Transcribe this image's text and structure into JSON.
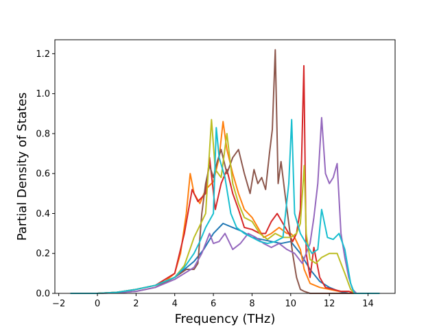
{
  "chart_data": {
    "type": "line",
    "title": "",
    "xlabel": "Frequency (THz)",
    "ylabel": "Partial Density of States",
    "xlim": [
      -2.2,
      15.4
    ],
    "ylim": [
      0,
      1.27
    ],
    "xticks": [
      -2,
      0,
      2,
      4,
      6,
      8,
      10,
      12,
      14
    ],
    "xtick_labels": [
      "−2",
      "0",
      "2",
      "4",
      "6",
      "8",
      "10",
      "12",
      "14"
    ],
    "yticks": [
      0.0,
      0.2,
      0.4,
      0.6,
      0.8,
      1.0,
      1.2
    ],
    "ytick_labels": [
      "0.0",
      "0.2",
      "0.4",
      "0.6",
      "0.8",
      "1.0",
      "1.2"
    ],
    "grid": false,
    "series": [
      {
        "color": "#1f77b4",
        "points": [
          [
            -1.4,
            0
          ],
          [
            0,
            0
          ],
          [
            1,
            0.005
          ],
          [
            2,
            0.02
          ],
          [
            3,
            0.04
          ],
          [
            4,
            0.08
          ],
          [
            4.5,
            0.12
          ],
          [
            5,
            0.16
          ],
          [
            5.5,
            0.22
          ],
          [
            6,
            0.3
          ],
          [
            6.5,
            0.35
          ],
          [
            7,
            0.33
          ],
          [
            7.5,
            0.31
          ],
          [
            8,
            0.28
          ],
          [
            8.5,
            0.27
          ],
          [
            9,
            0.26
          ],
          [
            9.5,
            0.25
          ],
          [
            10,
            0.26
          ],
          [
            10.5,
            0.2
          ],
          [
            11,
            0.12
          ],
          [
            11.5,
            0.06
          ],
          [
            12,
            0.03
          ],
          [
            12.5,
            0.01
          ],
          [
            13,
            0
          ],
          [
            14.6,
            0
          ]
        ]
      },
      {
        "color": "#ff7f0e",
        "points": [
          [
            -1.4,
            0
          ],
          [
            0,
            0
          ],
          [
            1,
            0.005
          ],
          [
            2,
            0.02
          ],
          [
            3,
            0.04
          ],
          [
            3.5,
            0.06
          ],
          [
            4,
            0.1
          ],
          [
            4.3,
            0.2
          ],
          [
            4.6,
            0.4
          ],
          [
            4.8,
            0.6
          ],
          [
            5,
            0.5
          ],
          [
            5.3,
            0.45
          ],
          [
            5.6,
            0.52
          ],
          [
            6,
            0.56
          ],
          [
            6.3,
            0.68
          ],
          [
            6.5,
            0.86
          ],
          [
            6.7,
            0.72
          ],
          [
            7,
            0.6
          ],
          [
            7.3,
            0.5
          ],
          [
            7.6,
            0.42
          ],
          [
            8,
            0.38
          ],
          [
            8.3,
            0.33
          ],
          [
            8.6,
            0.28
          ],
          [
            9,
            0.3
          ],
          [
            9.4,
            0.33
          ],
          [
            9.8,
            0.3
          ],
          [
            10,
            0.3
          ],
          [
            10.2,
            0.28
          ],
          [
            10.5,
            0.22
          ],
          [
            10.7,
            0.12
          ],
          [
            11,
            0.05
          ],
          [
            11.5,
            0.03
          ],
          [
            12,
            0.02
          ],
          [
            12.5,
            0.01
          ],
          [
            13,
            0.01
          ],
          [
            13.3,
            0
          ],
          [
            14.6,
            0
          ]
        ]
      },
      {
        "color": "#d62728",
        "points": [
          [
            -1.4,
            0
          ],
          [
            0,
            0
          ],
          [
            1,
            0.005
          ],
          [
            2,
            0.02
          ],
          [
            3,
            0.04
          ],
          [
            4,
            0.1
          ],
          [
            4.5,
            0.3
          ],
          [
            4.9,
            0.52
          ],
          [
            5.2,
            0.46
          ],
          [
            5.6,
            0.5
          ],
          [
            5.8,
            0.68
          ],
          [
            6.1,
            0.42
          ],
          [
            6.4,
            0.55
          ],
          [
            6.7,
            0.62
          ],
          [
            7,
            0.5
          ],
          [
            7.3,
            0.42
          ],
          [
            7.6,
            0.33
          ],
          [
            8,
            0.32
          ],
          [
            8.4,
            0.3
          ],
          [
            8.7,
            0.3
          ],
          [
            9,
            0.36
          ],
          [
            9.3,
            0.4
          ],
          [
            9.6,
            0.35
          ],
          [
            9.9,
            0.3
          ],
          [
            10.1,
            0.26
          ],
          [
            10.3,
            0.3
          ],
          [
            10.5,
            0.42
          ],
          [
            10.68,
            1.14
          ],
          [
            10.8,
            0.2
          ],
          [
            11,
            0.08
          ],
          [
            11.2,
            0.23
          ],
          [
            11.5,
            0.08
          ],
          [
            11.8,
            0.03
          ],
          [
            12.2,
            0.02
          ],
          [
            12.6,
            0.01
          ],
          [
            13,
            0.01
          ],
          [
            13.3,
            0
          ],
          [
            14.6,
            0
          ]
        ]
      },
      {
        "color": "#8c564b",
        "points": [
          [
            -1.4,
            0
          ],
          [
            0,
            0
          ],
          [
            1,
            0.003
          ],
          [
            2,
            0.01
          ],
          [
            3,
            0.03
          ],
          [
            4,
            0.08
          ],
          [
            4.6,
            0.12
          ],
          [
            5,
            0.12
          ],
          [
            5.2,
            0.15
          ],
          [
            5.4,
            0.4
          ],
          [
            5.6,
            0.55
          ],
          [
            5.8,
            0.64
          ],
          [
            6,
            0.58
          ],
          [
            6.2,
            0.66
          ],
          [
            6.4,
            0.72
          ],
          [
            6.7,
            0.6
          ],
          [
            7,
            0.68
          ],
          [
            7.3,
            0.72
          ],
          [
            7.6,
            0.6
          ],
          [
            7.9,
            0.5
          ],
          [
            8.1,
            0.62
          ],
          [
            8.3,
            0.55
          ],
          [
            8.5,
            0.58
          ],
          [
            8.7,
            0.52
          ],
          [
            8.9,
            0.7
          ],
          [
            9.05,
            0.82
          ],
          [
            9.2,
            1.22
          ],
          [
            9.35,
            0.55
          ],
          [
            9.5,
            0.66
          ],
          [
            9.7,
            0.5
          ],
          [
            9.9,
            0.35
          ],
          [
            10.1,
            0.2
          ],
          [
            10.3,
            0.08
          ],
          [
            10.5,
            0.02
          ],
          [
            10.7,
            0.01
          ],
          [
            11,
            0
          ],
          [
            14.6,
            0
          ]
        ]
      },
      {
        "color": "#9467bd",
        "points": [
          [
            -1.4,
            0
          ],
          [
            0,
            0
          ],
          [
            1,
            0.003
          ],
          [
            2,
            0.01
          ],
          [
            3,
            0.03
          ],
          [
            4,
            0.07
          ],
          [
            4.5,
            0.1
          ],
          [
            5,
            0.13
          ],
          [
            5.4,
            0.2
          ],
          [
            5.8,
            0.3
          ],
          [
            6,
            0.25
          ],
          [
            6.3,
            0.26
          ],
          [
            6.6,
            0.3
          ],
          [
            7,
            0.22
          ],
          [
            7.4,
            0.25
          ],
          [
            7.8,
            0.3
          ],
          [
            8.2,
            0.28
          ],
          [
            8.6,
            0.25
          ],
          [
            9,
            0.23
          ],
          [
            9.4,
            0.25
          ],
          [
            9.8,
            0.22
          ],
          [
            10.2,
            0.2
          ],
          [
            10.6,
            0.15
          ],
          [
            11,
            0.25
          ],
          [
            11.2,
            0.38
          ],
          [
            11.4,
            0.55
          ],
          [
            11.6,
            0.88
          ],
          [
            11.8,
            0.6
          ],
          [
            12,
            0.55
          ],
          [
            12.2,
            0.58
          ],
          [
            12.4,
            0.65
          ],
          [
            12.6,
            0.3
          ],
          [
            12.8,
            0.18
          ],
          [
            13,
            0.08
          ],
          [
            13.2,
            0.02
          ],
          [
            13.4,
            0
          ],
          [
            14.6,
            0
          ]
        ]
      },
      {
        "color": "#bcbd22",
        "points": [
          [
            -1.4,
            0
          ],
          [
            0,
            0
          ],
          [
            1,
            0.005
          ],
          [
            2,
            0.02
          ],
          [
            3,
            0.04
          ],
          [
            4,
            0.08
          ],
          [
            4.5,
            0.14
          ],
          [
            5,
            0.28
          ],
          [
            5.3,
            0.34
          ],
          [
            5.6,
            0.4
          ],
          [
            5.9,
            0.87
          ],
          [
            6.1,
            0.62
          ],
          [
            6.4,
            0.58
          ],
          [
            6.7,
            0.8
          ],
          [
            7,
            0.55
          ],
          [
            7.3,
            0.45
          ],
          [
            7.6,
            0.38
          ],
          [
            8,
            0.36
          ],
          [
            8.4,
            0.3
          ],
          [
            8.8,
            0.27
          ],
          [
            9.2,
            0.3
          ],
          [
            9.6,
            0.28
          ],
          [
            10,
            0.28
          ],
          [
            10.3,
            0.3
          ],
          [
            10.5,
            0.35
          ],
          [
            10.7,
            0.64
          ],
          [
            10.8,
            0.3
          ],
          [
            11,
            0.17
          ],
          [
            11.3,
            0.15
          ],
          [
            11.6,
            0.18
          ],
          [
            12,
            0.2
          ],
          [
            12.4,
            0.2
          ],
          [
            12.8,
            0.1
          ],
          [
            13.1,
            0.02
          ],
          [
            13.3,
            0
          ],
          [
            14.6,
            0
          ]
        ]
      },
      {
        "color": "#17becf",
        "points": [
          [
            -1.4,
            0
          ],
          [
            0,
            0
          ],
          [
            1,
            0.005
          ],
          [
            2,
            0.02
          ],
          [
            3,
            0.04
          ],
          [
            4,
            0.08
          ],
          [
            4.5,
            0.13
          ],
          [
            5,
            0.2
          ],
          [
            5.3,
            0.26
          ],
          [
            5.6,
            0.33
          ],
          [
            6,
            0.4
          ],
          [
            6.15,
            0.83
          ],
          [
            6.3,
            0.68
          ],
          [
            6.6,
            0.58
          ],
          [
            6.9,
            0.4
          ],
          [
            7.2,
            0.33
          ],
          [
            7.6,
            0.3
          ],
          [
            8,
            0.28
          ],
          [
            8.4,
            0.26
          ],
          [
            8.8,
            0.25
          ],
          [
            9.2,
            0.26
          ],
          [
            9.6,
            0.28
          ],
          [
            9.9,
            0.55
          ],
          [
            10.05,
            0.87
          ],
          [
            10.2,
            0.4
          ],
          [
            10.5,
            0.3
          ],
          [
            10.8,
            0.25
          ],
          [
            11.1,
            0.2
          ],
          [
            11.4,
            0.22
          ],
          [
            11.6,
            0.42
          ],
          [
            11.9,
            0.28
          ],
          [
            12.2,
            0.27
          ],
          [
            12.5,
            0.3
          ],
          [
            12.8,
            0.22
          ],
          [
            13.1,
            0.05
          ],
          [
            13.3,
            0
          ],
          [
            14.6,
            0
          ]
        ]
      }
    ]
  }
}
